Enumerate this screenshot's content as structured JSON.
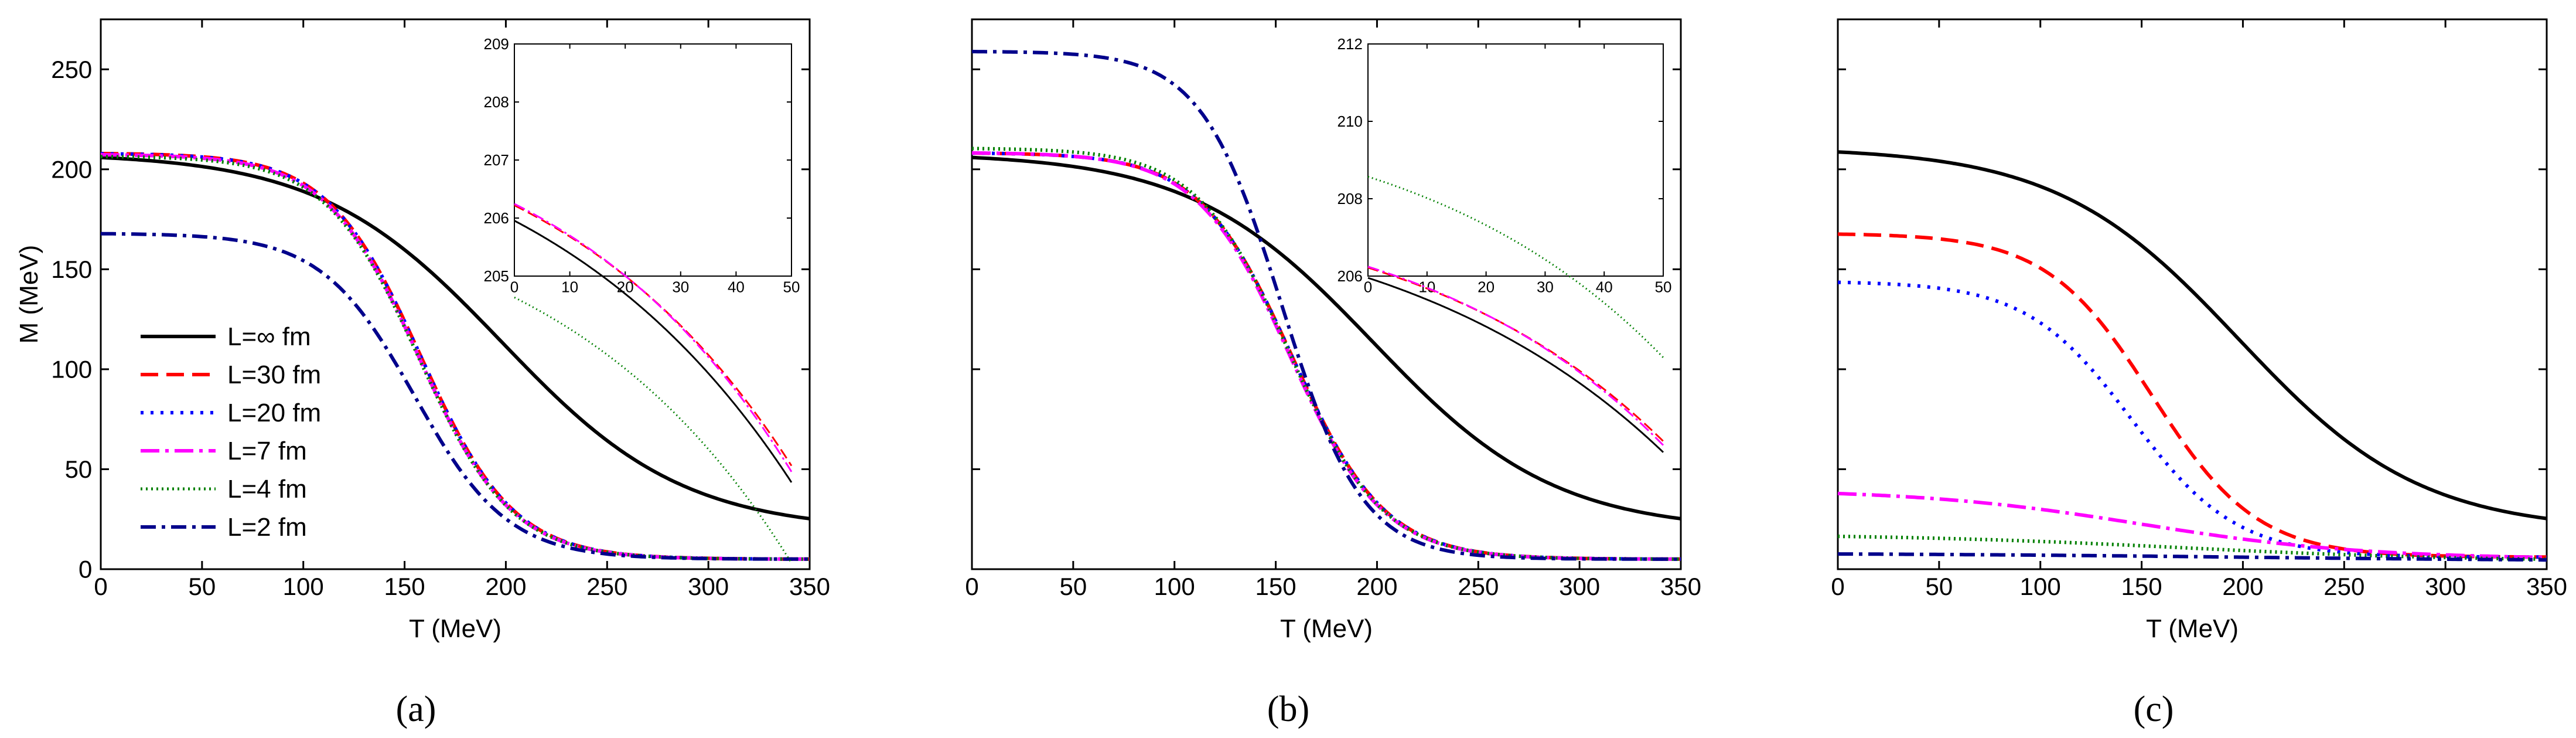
{
  "figure": {
    "panels": [
      "a",
      "b",
      "c"
    ],
    "captions": [
      "(a)",
      "(b)",
      "(c)"
    ]
  },
  "colors": {
    "L=∞ fm": "#000000",
    "L=30 fm": "#ff0000",
    "L=20 fm": "#0000ff",
    "L=7 fm": "#ff00ff",
    "L=4 fm": "#008000",
    "L=2 fm": "#00008b"
  },
  "legend": [
    {
      "label": "L=∞ fm",
      "style": "solid"
    },
    {
      "label": "L=30 fm",
      "style": "dash"
    },
    {
      "label": "L=20 fm",
      "style": "dot"
    },
    {
      "label": "L=7 fm",
      "style": "dashdot"
    },
    {
      "label": "L=4 fm",
      "style": "shortdot"
    },
    {
      "label": "L=2 fm",
      "style": "dashdot"
    }
  ],
  "chart_data": [
    {
      "id": "a",
      "type": "line",
      "caption": "(a)",
      "xlabel": "T (MeV)",
      "ylabel": "M (MeV)",
      "xlim": [
        0,
        350
      ],
      "ylim": [
        0,
        275
      ],
      "xticks": [
        0,
        50,
        100,
        150,
        200,
        250,
        300,
        350
      ],
      "yticks": [
        0,
        50,
        100,
        150,
        200,
        250
      ],
      "show_ytick_labels": true,
      "legend_position": "left",
      "series": [
        {
          "name": "L=∞ fm",
          "plateau": 208.2,
          "Tc": 198,
          "width": 45,
          "tail": 19
        },
        {
          "name": "L=30 fm",
          "plateau": 208.1,
          "Tc": 158,
          "width": 23,
          "tail": 5
        },
        {
          "name": "L=20 fm",
          "plateau": 208.0,
          "Tc": 158,
          "width": 23,
          "tail": 5
        },
        {
          "name": "L=7 fm",
          "plateau": 207.5,
          "Tc": 157,
          "width": 23,
          "tail": 5
        },
        {
          "name": "L=4 fm",
          "plateau": 206.6,
          "Tc": 157,
          "width": 23,
          "tail": 5
        },
        {
          "name": "L=2 fm",
          "plateau": 168.0,
          "Tc": 155,
          "width": 23,
          "tail": 5
        }
      ],
      "inset": {
        "xlim": [
          0,
          50
        ],
        "ylim": [
          205,
          209
        ],
        "xticks": [
          0,
          10,
          20,
          30,
          40,
          50
        ],
        "yticks": [
          205,
          206,
          207,
          208,
          209
        ],
        "series": [
          {
            "name": "L=∞ fm",
            "plateau": 208.25,
            "Tc": 198,
            "width": 45,
            "tail": 19
          },
          {
            "name": "L=30 fm",
            "plateau": 208.25,
            "Tc": 190,
            "width": 42,
            "tail": 19
          },
          {
            "name": "L=7 fm",
            "plateau": 208.25,
            "Tc": 186,
            "width": 41,
            "tail": 19
          },
          {
            "name": "L=4 fm",
            "plateau": 206.62,
            "Tc": 186,
            "width": 41,
            "tail": 19
          }
        ]
      }
    },
    {
      "id": "b",
      "type": "line",
      "caption": "(b)",
      "xlabel": "T (MeV)",
      "ylabel": "",
      "xlim": [
        0,
        350
      ],
      "ylim": [
        0,
        275
      ],
      "xticks": [
        0,
        50,
        100,
        150,
        200,
        250,
        300,
        350
      ],
      "yticks": [
        0,
        50,
        100,
        150,
        200,
        250
      ],
      "show_ytick_labels": false,
      "series": [
        {
          "name": "L=∞ fm",
          "plateau": 208.2,
          "Tc": 198,
          "width": 45,
          "tail": 19
        },
        {
          "name": "L=30 fm",
          "plateau": 208.3,
          "Tc": 158,
          "width": 23,
          "tail": 5
        },
        {
          "name": "L=20 fm",
          "plateau": 208.3,
          "Tc": 158,
          "width": 23,
          "tail": 5
        },
        {
          "name": "L=7 fm",
          "plateau": 208.4,
          "Tc": 157,
          "width": 23,
          "tail": 5
        },
        {
          "name": "L=4 fm",
          "plateau": 210.6,
          "Tc": 157,
          "width": 23,
          "tail": 5
        },
        {
          "name": "L=2 fm",
          "plateau": 259.0,
          "Tc": 153,
          "width": 20,
          "tail": 5
        }
      ],
      "inset": {
        "xlim": [
          0,
          50
        ],
        "ylim": [
          206,
          212
        ],
        "xticks": [
          0,
          10,
          20,
          30,
          40,
          50
        ],
        "yticks": [
          206,
          208,
          210,
          212
        ],
        "series": [
          {
            "name": "L=∞ fm",
            "plateau": 208.25,
            "Tc": 198,
            "width": 45,
            "tail": 19
          },
          {
            "name": "L=30 fm",
            "plateau": 208.25,
            "Tc": 190,
            "width": 42,
            "tail": 19
          },
          {
            "name": "L=7 fm",
            "plateau": 208.25,
            "Tc": 186,
            "width": 41,
            "tail": 19
          },
          {
            "name": "L=4 fm",
            "plateau": 210.6,
            "Tc": 186,
            "width": 41,
            "tail": 19
          }
        ]
      }
    },
    {
      "id": "c",
      "type": "line",
      "caption": "(c)",
      "xlabel": "T (MeV)",
      "ylabel": "",
      "xlim": [
        0,
        350
      ],
      "ylim": [
        0,
        275
      ],
      "xticks": [
        0,
        50,
        100,
        150,
        200,
        250,
        300,
        350
      ],
      "yticks": [
        0,
        50,
        100,
        150,
        200,
        250
      ],
      "show_ytick_labels": false,
      "series": [
        {
          "name": "L=∞ fm",
          "plateau": 211.0,
          "Tc": 198,
          "width": 45,
          "tail": 19
        },
        {
          "name": "L=30 fm",
          "plateau": 168.0,
          "Tc": 155,
          "width": 26,
          "tail": 6
        },
        {
          "name": "L=20 fm",
          "plateau": 144.0,
          "Tc": 145,
          "width": 26,
          "tail": 6
        },
        {
          "name": "L=7 fm",
          "plateau": 40.0,
          "Tc": 150,
          "width": 55,
          "tail": 5
        },
        {
          "name": "L=4 fm",
          "plateau": 17.5,
          "Tc": 170,
          "width": 70,
          "tail": 4
        },
        {
          "name": "L=2 fm",
          "plateau": 8.0,
          "Tc": 200,
          "width": 90,
          "tail": 4
        }
      ]
    }
  ]
}
